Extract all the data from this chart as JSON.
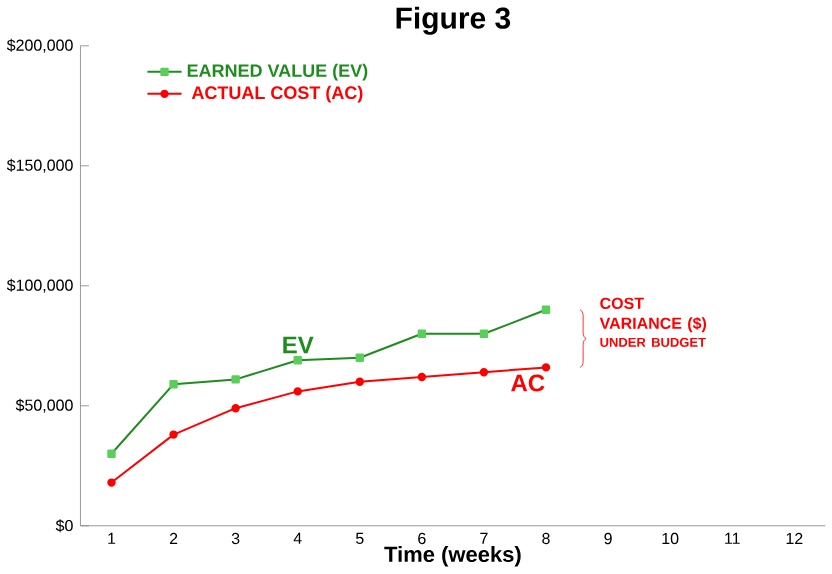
{
  "chart_data": {
    "type": "line",
    "title": "Figure 3",
    "xlabel": "Time (weeks)",
    "categories": [
      "1",
      "2",
      "3",
      "4",
      "5",
      "6",
      "7",
      "8",
      "9",
      "10",
      "11",
      "12"
    ],
    "series": [
      {
        "name": "EARNED VALUE (EV)",
        "color": "#1e8c1e",
        "marker": "square",
        "values": [
          30000,
          59000,
          61000,
          69000,
          70000,
          80000,
          80000,
          90000,
          null,
          null,
          null,
          null
        ]
      },
      {
        "name": "ACTUAL COST (AC)",
        "color": "#ff0000",
        "marker": "circle",
        "values": [
          18000,
          38000,
          49000,
          56000,
          60000,
          62000,
          64000,
          66000,
          null,
          null,
          null,
          null
        ]
      }
    ],
    "ylim": [
      0,
      200000
    ],
    "yticks": [
      {
        "value": 0,
        "label": "$0"
      },
      {
        "value": 50000,
        "label": "$50,000"
      },
      {
        "value": 100000,
        "label": "$100,000"
      },
      {
        "value": 150000,
        "label": "$150,000"
      },
      {
        "value": 200000,
        "label": "$200,000"
      }
    ],
    "legend": "top left",
    "grid": false,
    "annotations": [
      "EV",
      "AC",
      "COST VARIANCE ($)",
      "UNDER BUDGET"
    ]
  }
}
